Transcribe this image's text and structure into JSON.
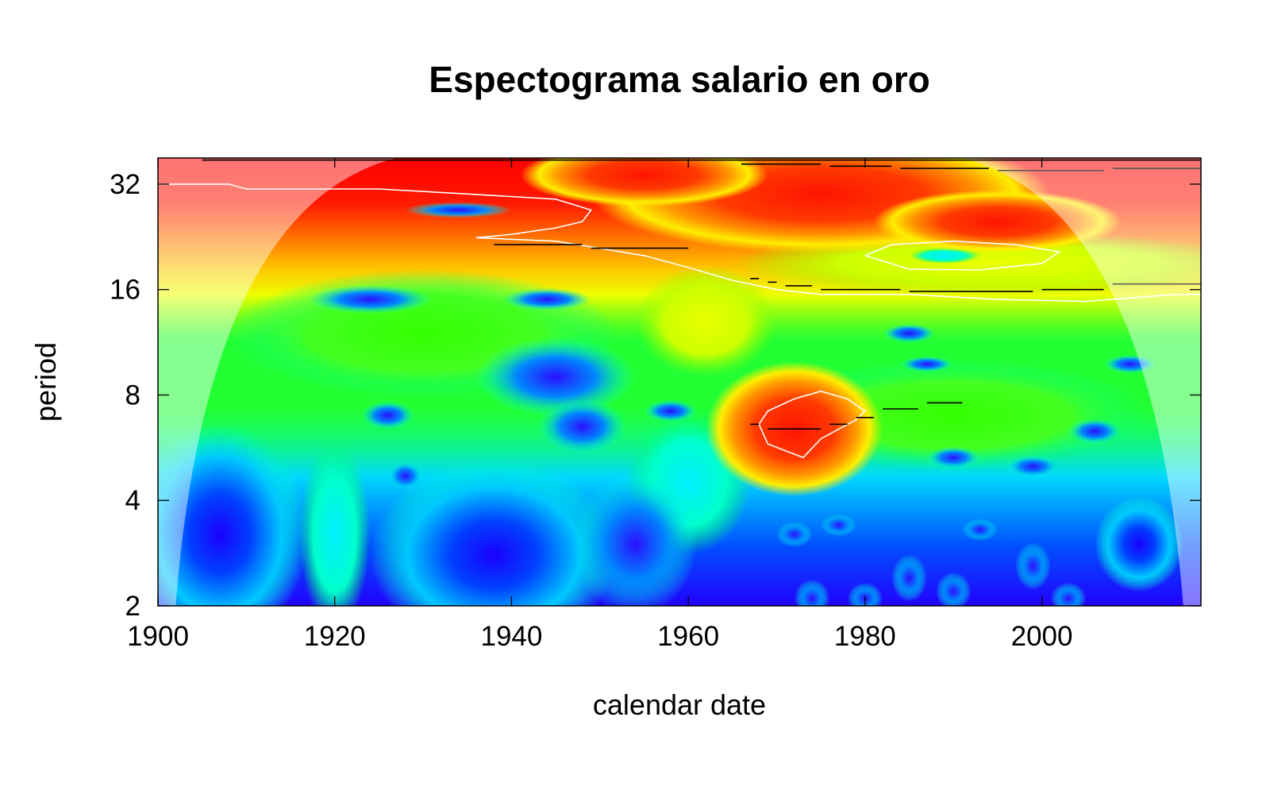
{
  "chart_data": {
    "type": "heatmap",
    "title": "Espectograma salario en oro",
    "xlabel": "calendar date",
    "ylabel": "period",
    "xlim": [
      1900,
      2018
    ],
    "ylim": [
      2,
      38
    ],
    "y_scale": "log2",
    "x_ticks": [
      1900,
      1920,
      1940,
      1960,
      1980,
      2000
    ],
    "x_tick_labels": [
      "1900",
      "1920",
      "1940",
      "1960",
      "1980",
      "2000"
    ],
    "y_ticks": [
      2,
      4,
      8,
      16,
      32
    ],
    "y_tick_labels": [
      "2",
      "4",
      "8",
      "16",
      "32"
    ],
    "colormap": [
      "#1a00ff",
      "#0055ff",
      "#00e5ff",
      "#00ff66",
      "#66ff00",
      "#d8ff00",
      "#ffff00",
      "#ff9900",
      "#ff2a00",
      "#ff0000"
    ],
    "cone_of_influence": true,
    "grid": false,
    "legend": false,
    "power_peaks": [
      {
        "x": 1972,
        "period": 6.5,
        "level": "high"
      },
      {
        "x": 1975,
        "period": 36,
        "level": "high"
      },
      {
        "x": 1990,
        "period": 20,
        "level": "high"
      },
      {
        "x": 1940,
        "period": 26,
        "level": "high"
      },
      {
        "x": 1924,
        "period": 15,
        "level": "low"
      },
      {
        "x": 1935,
        "period": 27,
        "level": "low"
      },
      {
        "x": 1943,
        "period": 9,
        "level": "low"
      }
    ]
  }
}
